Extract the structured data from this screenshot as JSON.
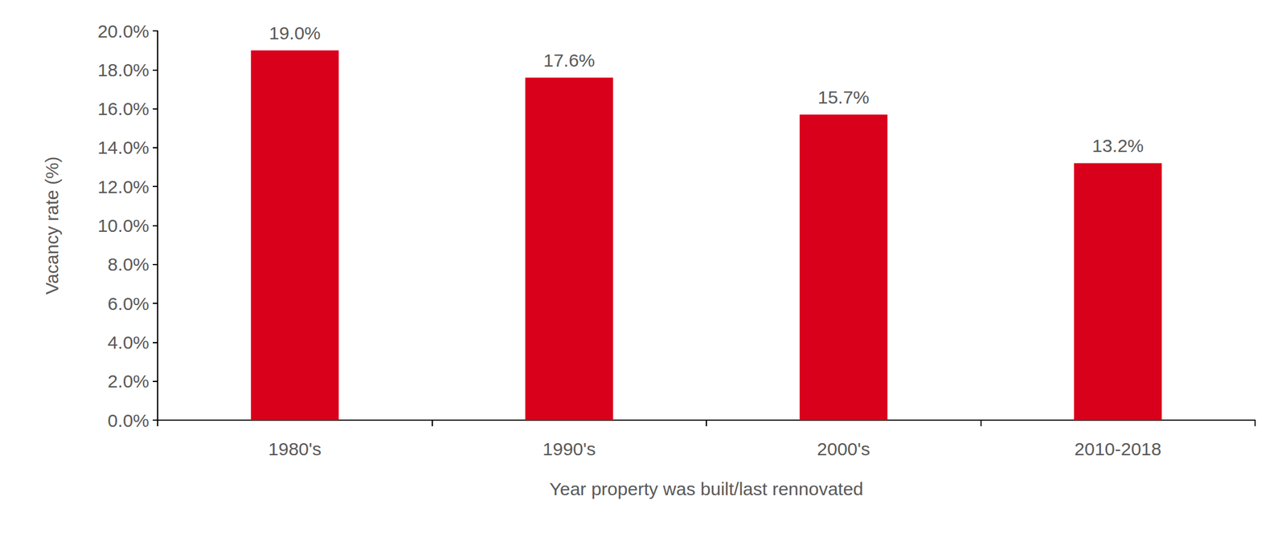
{
  "chart_data": {
    "type": "bar",
    "x_label": "Year property was built/last rennovated",
    "y_label": "Vacancy rate (%)",
    "categories": [
      "1980's",
      "1990's",
      "2000's",
      "2010-2018"
    ],
    "values": [
      19.0,
      17.6,
      15.7,
      13.2
    ],
    "value_labels": [
      "19.0%",
      "17.6%",
      "15.7%",
      "13.2%"
    ],
    "color": "#d9001b",
    "ylim": [
      0,
      20
    ],
    "yticks": [
      {
        "value": 0,
        "label": "0.0%"
      },
      {
        "value": 2,
        "label": "2.0%"
      },
      {
        "value": 4,
        "label": "4.0%"
      },
      {
        "value": 6,
        "label": "6.0%"
      },
      {
        "value": 8,
        "label": "8.0%"
      },
      {
        "value": 10,
        "label": "10.0%"
      },
      {
        "value": 12,
        "label": "12.0%"
      },
      {
        "value": 14,
        "label": "14.0%"
      },
      {
        "value": 16,
        "label": "16.0%"
      },
      {
        "value": 18,
        "label": "18.0%"
      },
      {
        "value": 20,
        "label": "20.0%"
      }
    ],
    "grid": false,
    "data_labels": true
  }
}
